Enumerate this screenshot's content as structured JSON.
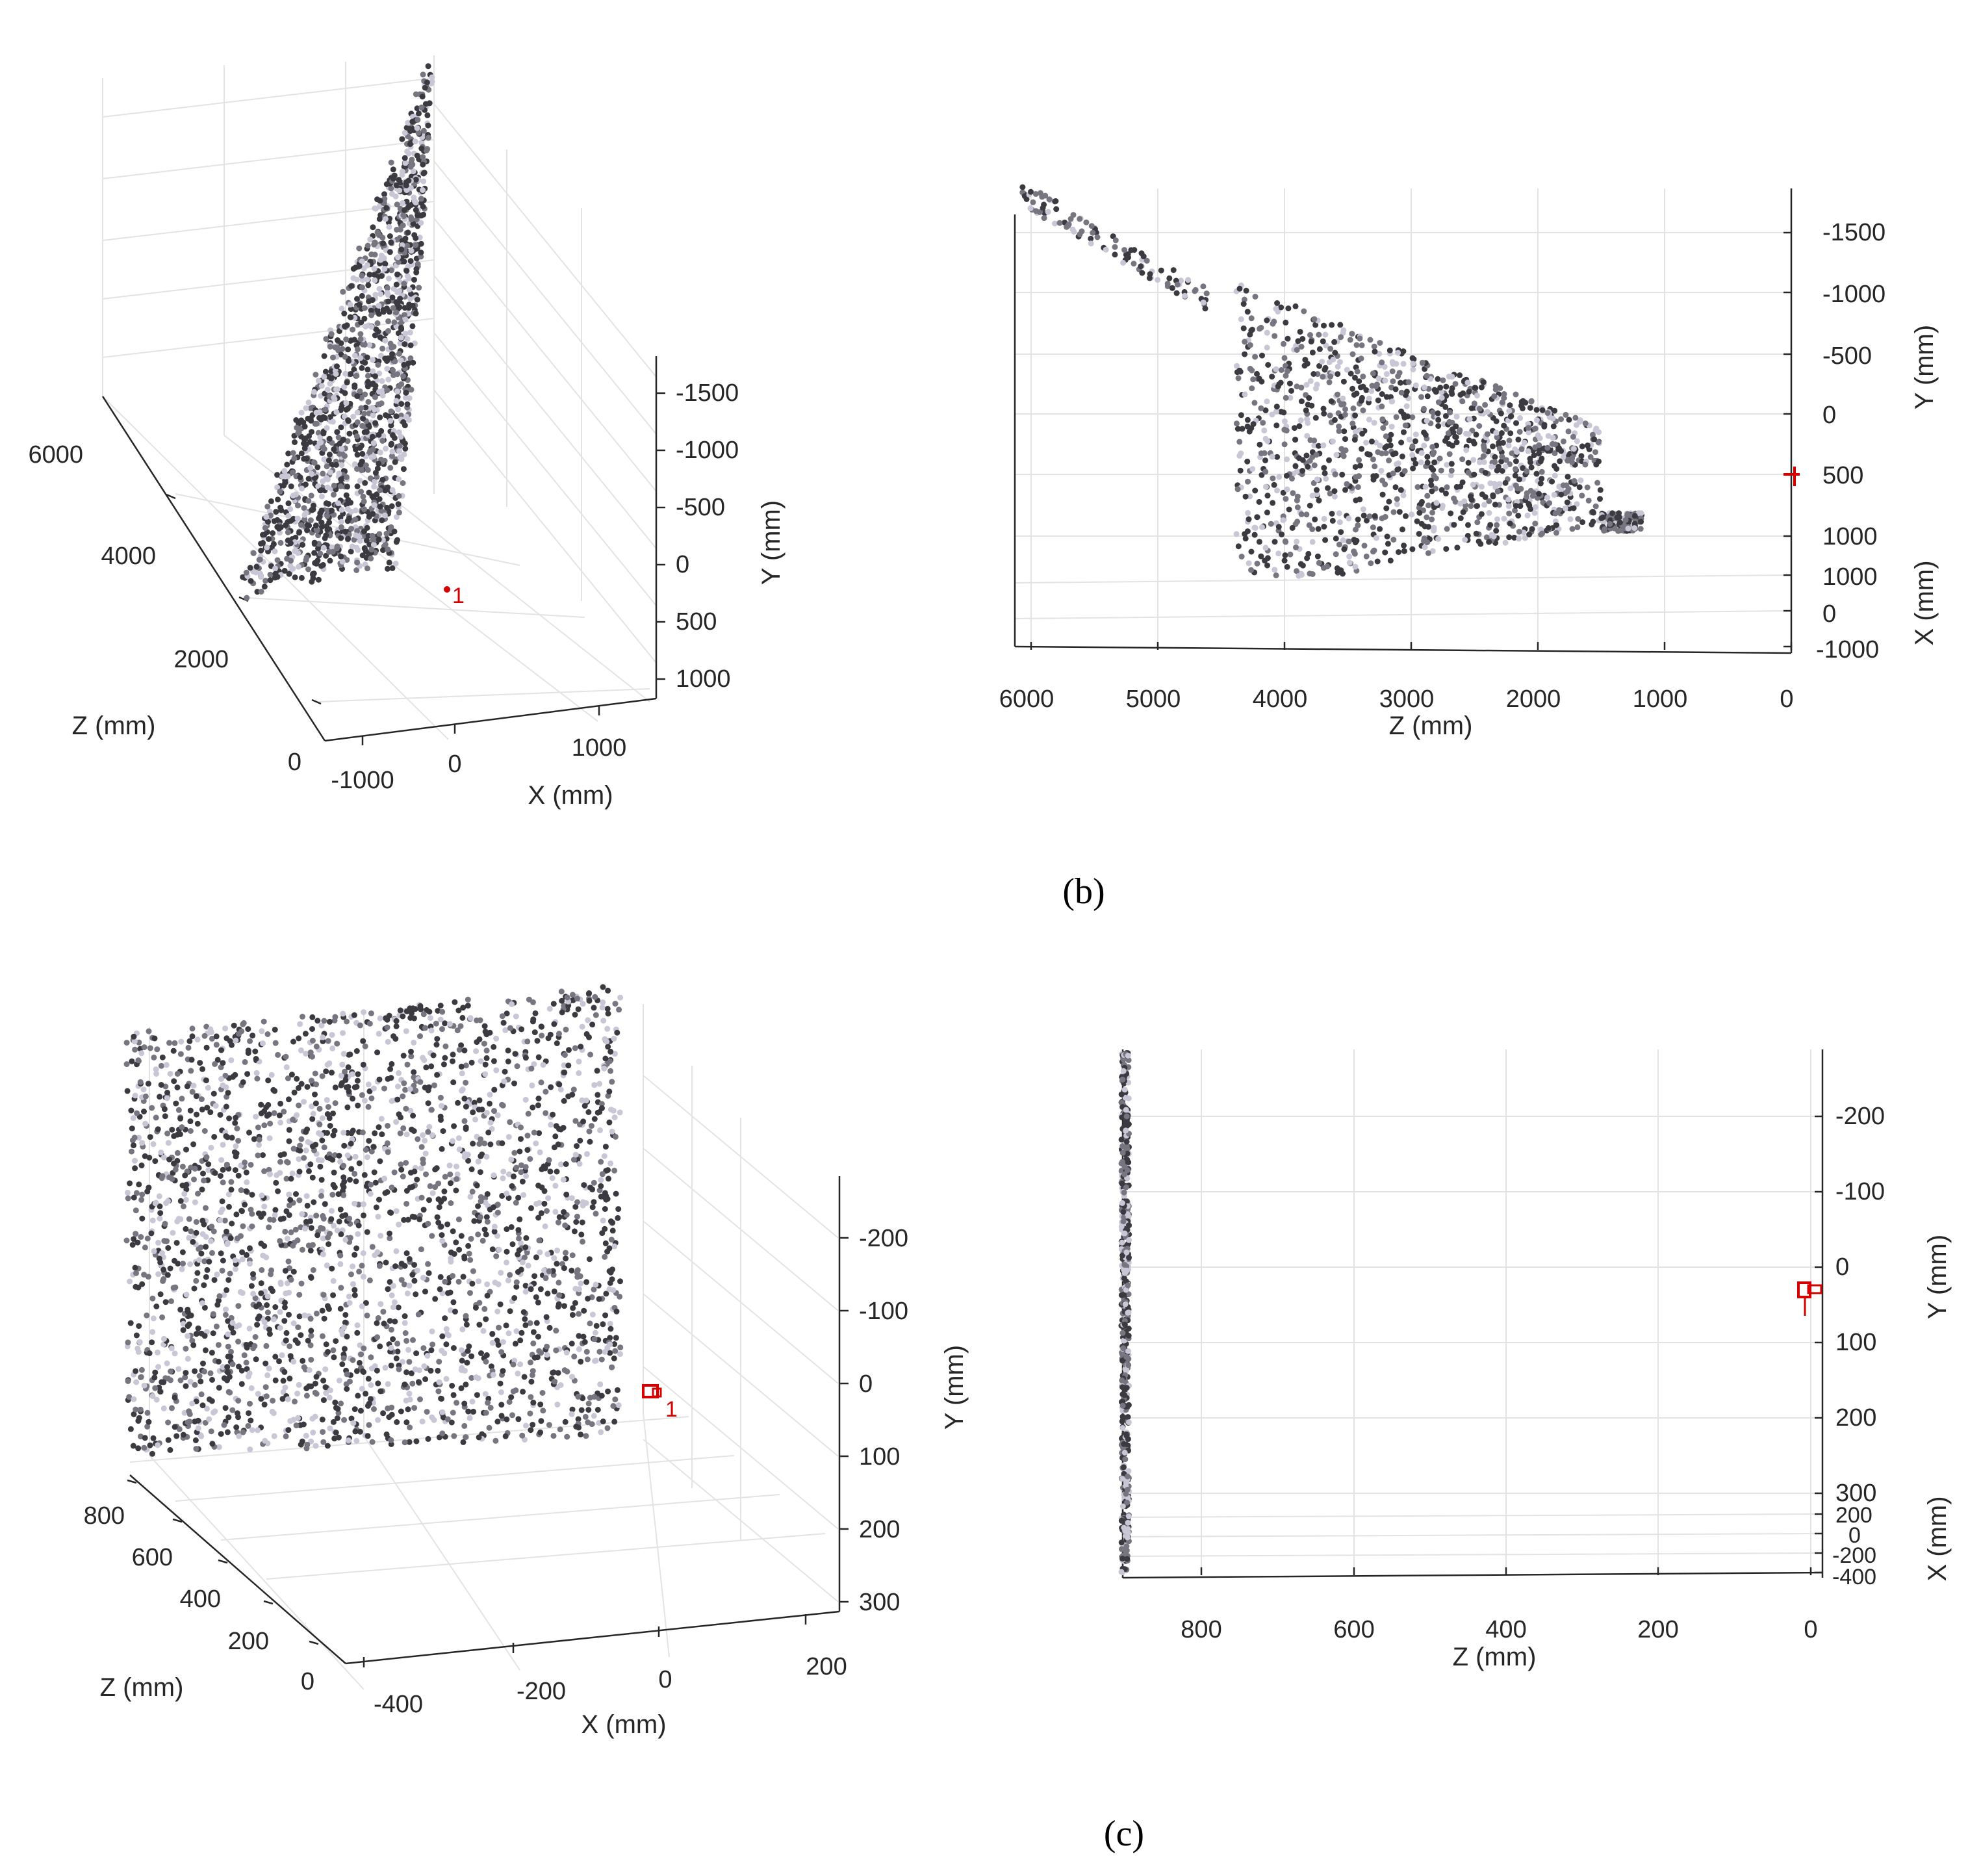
{
  "figure": {
    "captions": [
      "(b)",
      "(c)"
    ]
  },
  "colors": {
    "grid": "#e3e3e3",
    "axis": "#262626",
    "camera": "#d40000",
    "points_dark": "#3a3a40",
    "points_mid": "#77757f",
    "points_light": "#c9c6d6"
  },
  "chart_data": [
    {
      "id": "b-3d",
      "type": "scatter",
      "view": "3d-perspective",
      "title": "",
      "xlabel": "X (mm)",
      "ylabel": "Y (mm)",
      "zlabel": "Z (mm)",
      "x_ticks": [
        "-1000",
        "0",
        "1000"
      ],
      "y_ticks": [
        "-1500",
        "-1000",
        "-500",
        "0",
        "500",
        "1000"
      ],
      "z_ticks": [
        "0",
        "2000",
        "4000",
        "6000"
      ],
      "y_reversed": true,
      "xlim": [
        -1000,
        1400
      ],
      "ylim": [
        -1800,
        1100
      ],
      "zlim": [
        0,
        6000
      ],
      "grid": true,
      "camera_label": "1",
      "point_cloud": {
        "shape": "fan-shaped wedge widening with depth",
        "z_range": [
          1100,
          6100
        ],
        "y_range": [
          -1800,
          900
        ]
      }
    },
    {
      "id": "b-side",
      "type": "scatter",
      "view": "side (Z horizontal, reversed)",
      "title": "",
      "xlabel": "Z (mm)",
      "ylabel": "Y (mm)",
      "zlabel": "X (mm)",
      "z_ticks": [
        "6000",
        "5000",
        "4000",
        "3000",
        "2000",
        "1000",
        "0"
      ],
      "y_ticks": [
        "-1500",
        "-1000",
        "-500",
        "0",
        "500",
        "1000"
      ],
      "x_ticks": [
        "1000",
        "0",
        "-1000"
      ],
      "zlim": [
        0,
        6100
      ],
      "ylim": [
        -1850,
        1100
      ],
      "grid": true,
      "point_cloud": {
        "shape": "wedge tapering toward Z≈1200",
        "z_range": [
          1150,
          6100
        ],
        "y_range": [
          -1850,
          1350
        ]
      }
    },
    {
      "id": "c-3d",
      "type": "scatter",
      "view": "3d-perspective",
      "title": "",
      "xlabel": "X (mm)",
      "ylabel": "Y (mm)",
      "zlabel": "Z (mm)",
      "x_ticks": [
        "-400",
        "-200",
        "0",
        "200"
      ],
      "y_ticks": [
        "-200",
        "-100",
        "0",
        "100",
        "200",
        "300"
      ],
      "z_ticks": [
        "0",
        "200",
        "400",
        "600",
        "800"
      ],
      "y_reversed": true,
      "grid": true,
      "camera_label": "1",
      "point_cloud": {
        "shape": "planar square wall",
        "z": 900,
        "x_range": [
          -400,
          400
        ],
        "y_range": [
          -280,
          300
        ]
      }
    },
    {
      "id": "c-side",
      "type": "scatter",
      "view": "side (Z horizontal, reversed)",
      "title": "",
      "xlabel": "Z (mm)",
      "ylabel": "Y (mm)",
      "zlabel": "X (mm)",
      "z_ticks": [
        "800",
        "600",
        "400",
        "200",
        "0"
      ],
      "y_ticks": [
        "-200",
        "-100",
        "0",
        "100",
        "200",
        "300"
      ],
      "x_ticks": [
        "200",
        "0",
        "-200",
        "-400"
      ],
      "zlim": [
        0,
        905
      ],
      "ylim": [
        -290,
        300
      ],
      "grid": true,
      "point_cloud": {
        "shape": "thin vertical band (plane seen edge-on)",
        "z": 900,
        "y_range": [
          -290,
          300
        ]
      }
    }
  ]
}
